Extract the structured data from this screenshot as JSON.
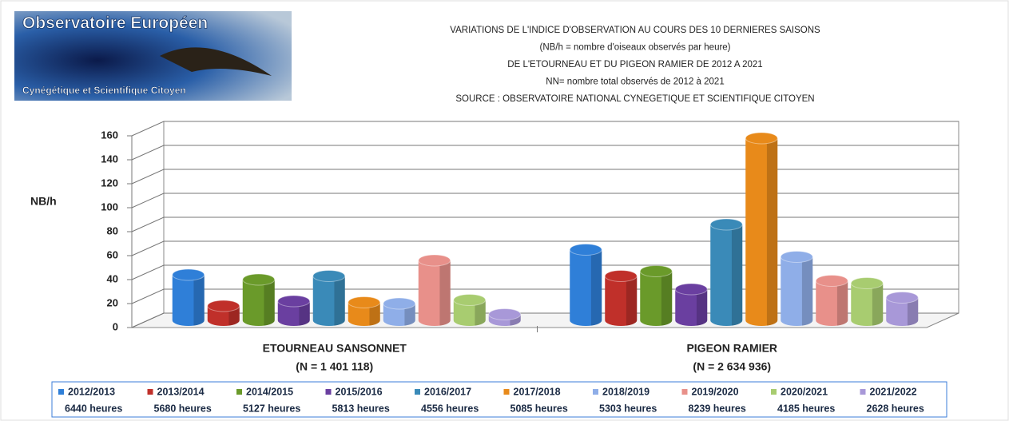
{
  "logo": {
    "top": "Observatoire Européen",
    "bottom": "Cynégétique et Scientifique Citoyen"
  },
  "chart_data": {
    "type": "bar3d",
    "title": [
      "VARIATIONS DE L'INDICE D'OBSERVATION AU COURS DES 10 DERNIERES SAISONS",
      "(NB/h = nombre d'oiseaux observés par heure)",
      "DE L'ETOURNEAU ET DU PIGEON RAMIER DE 2012 A 2021",
      "NN= nombre total observés de 2012 à 2021",
      "SOURCE : OBSERVATOIRE NATIONAL CYNEGETIQUE ET SCIENTIFIQUE CITOYEN"
    ],
    "y_label": "NB/h",
    "categories": [
      "ETOURNEAU SANSONNET",
      "PIGEON RAMIER"
    ],
    "category_notes": [
      "(N = 1 401 118)",
      "(N = 2 634 936)"
    ],
    "ylim": [
      0,
      160
    ],
    "yticks": [
      0,
      20,
      40,
      60,
      80,
      100,
      120,
      140,
      160
    ],
    "grid": true,
    "series": [
      {
        "name": "2012/2013",
        "hours": "6440 heures",
        "color": "#2f7fd8",
        "values": [
          38,
          59
        ]
      },
      {
        "name": "2013/2014",
        "hours": "5680 heures",
        "color": "#c0302a",
        "values": [
          12,
          37
        ]
      },
      {
        "name": "2014/2015",
        "hours": "5127 heures",
        "color": "#6a9a2a",
        "values": [
          34,
          41
        ]
      },
      {
        "name": "2015/2016",
        "hours": "5813 heures",
        "color": "#6a3fa0",
        "values": [
          16,
          26
        ]
      },
      {
        "name": "2016/2017",
        "hours": "4556 heures",
        "color": "#3a8ab8",
        "values": [
          37,
          80
        ]
      },
      {
        "name": "2017/2018",
        "hours": "5085 heures",
        "color": "#e88a1a",
        "values": [
          15,
          152
        ]
      },
      {
        "name": "2018/2019",
        "hours": "5303 heures",
        "color": "#8faee8",
        "values": [
          14,
          53
        ]
      },
      {
        "name": "2019/2020",
        "hours": "8239 heures",
        "color": "#e8908a",
        "values": [
          50,
          33
        ]
      },
      {
        "name": "2020/2021",
        "hours": "4185 heures",
        "color": "#a8cc70",
        "values": [
          17,
          31
        ]
      },
      {
        "name": "2021/2022",
        "hours": "2628 heures",
        "color": "#a898d8",
        "values": [
          5,
          19
        ]
      }
    ]
  }
}
